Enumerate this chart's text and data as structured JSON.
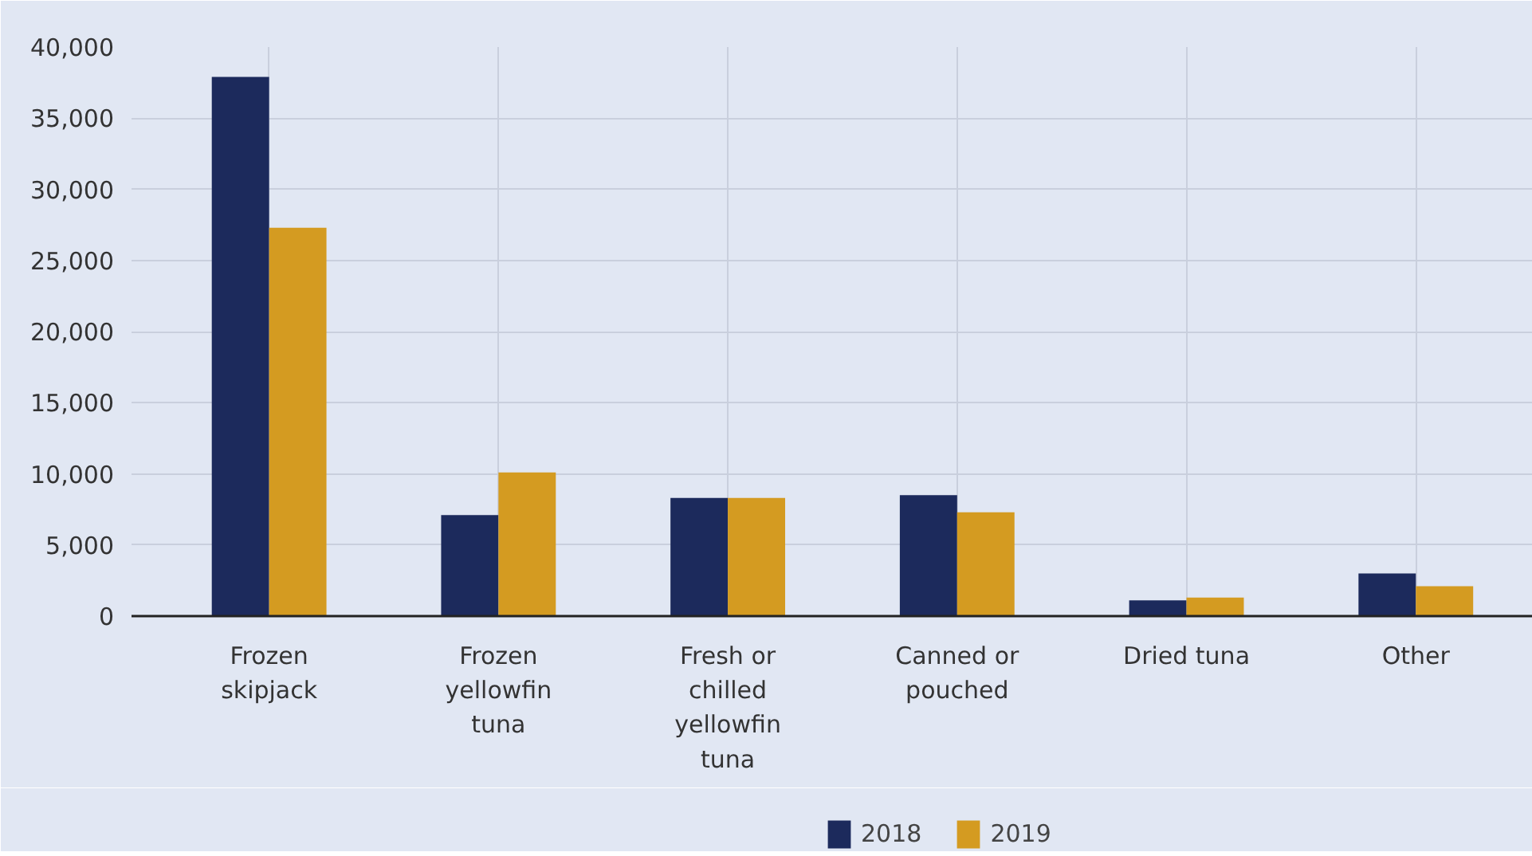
{
  "chart_data": {
    "type": "bar",
    "categories": [
      "Frozen skipjack",
      "Frozen yellowfin tuna",
      "Fresh or chilled yellowfin tuna",
      "Canned or pouched",
      "Dried tuna",
      "Other"
    ],
    "series": [
      {
        "name": "2018",
        "color": "#1c2a5c",
        "values": [
          37900,
          7100,
          8300,
          8500,
          1100,
          3000
        ]
      },
      {
        "name": "2019",
        "color": "#d49b21",
        "values": [
          27300,
          10100,
          8300,
          7300,
          1300,
          2100
        ]
      }
    ],
    "ylim": [
      0,
      40000
    ],
    "yticks": [
      0,
      {
        "value": 5000,
        "label": "5,000"
      },
      {
        "value": 10000,
        "label": "10,000"
      },
      {
        "value": 15000,
        "label": "15,000"
      },
      {
        "value": 20000,
        "label": "20,000"
      },
      {
        "value": 25000,
        "label": "25,000"
      },
      {
        "value": 30000,
        "label": "30,000"
      },
      {
        "value": 35000,
        "label": "35,000"
      },
      {
        "value": 40000,
        "label": "40,000"
      }
    ],
    "grid": true,
    "legend": "bottom"
  }
}
